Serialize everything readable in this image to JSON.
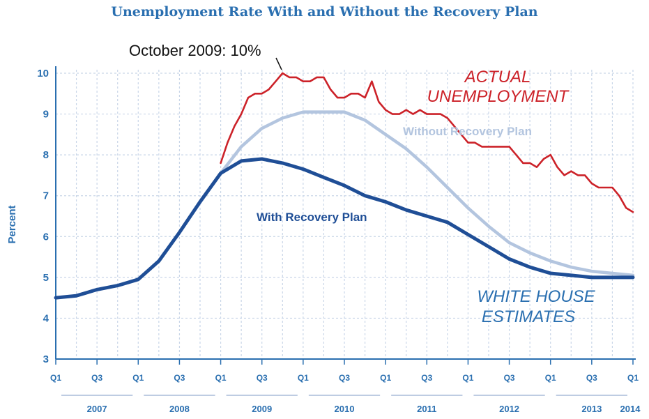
{
  "chart_data": {
    "type": "line",
    "title": "Unemployment Rate With and Without the Recovery Plan",
    "ylabel": "Percent",
    "xlabel": "",
    "ylim": [
      3,
      10
    ],
    "yticks": [
      3,
      4,
      5,
      6,
      7,
      8,
      9,
      10
    ],
    "xlim": [
      2007.0,
      2014.0
    ],
    "grid": true,
    "quarter_ticks": [
      {
        "x": 2007.0,
        "label": "Q1"
      },
      {
        "x": 2007.5,
        "label": "Q3"
      },
      {
        "x": 2008.0,
        "label": "Q1"
      },
      {
        "x": 2008.5,
        "label": "Q3"
      },
      {
        "x": 2009.0,
        "label": "Q1"
      },
      {
        "x": 2009.5,
        "label": "Q3"
      },
      {
        "x": 2010.0,
        "label": "Q1"
      },
      {
        "x": 2010.5,
        "label": "Q3"
      },
      {
        "x": 2011.0,
        "label": "Q1"
      },
      {
        "x": 2011.5,
        "label": "Q3"
      },
      {
        "x": 2012.0,
        "label": "Q1"
      },
      {
        "x": 2012.5,
        "label": "Q3"
      },
      {
        "x": 2013.0,
        "label": "Q1"
      },
      {
        "x": 2013.5,
        "label": "Q3"
      },
      {
        "x": 2014.0,
        "label": "Q1"
      }
    ],
    "year_labels": [
      "2007",
      "2008",
      "2009",
      "2010",
      "2011",
      "2012",
      "2013",
      "2014"
    ],
    "series": [
      {
        "name": "ACTUAL UNEMPLOYMENT",
        "color": "#cc2229",
        "x": [
          2009.0,
          2009.083,
          2009.167,
          2009.25,
          2009.333,
          2009.417,
          2009.5,
          2009.583,
          2009.667,
          2009.75,
          2009.833,
          2009.917,
          2010.0,
          2010.083,
          2010.167,
          2010.25,
          2010.333,
          2010.417,
          2010.5,
          2010.583,
          2010.667,
          2010.75,
          2010.833,
          2010.917,
          2011.0,
          2011.083,
          2011.167,
          2011.25,
          2011.333,
          2011.417,
          2011.5,
          2011.583,
          2011.667,
          2011.75,
          2011.833,
          2011.917,
          2012.0,
          2012.083,
          2012.167,
          2012.25,
          2012.333,
          2012.417,
          2012.5,
          2012.583,
          2012.667,
          2012.75,
          2012.833,
          2012.917,
          2013.0,
          2013.083,
          2013.167,
          2013.25,
          2013.333,
          2013.417,
          2013.5,
          2013.583,
          2013.667,
          2013.75,
          2013.833,
          2013.917,
          2014.0
        ],
        "values": [
          7.8,
          8.3,
          8.7,
          9.0,
          9.4,
          9.5,
          9.5,
          9.6,
          9.8,
          10.0,
          9.9,
          9.9,
          9.8,
          9.8,
          9.9,
          9.9,
          9.6,
          9.4,
          9.4,
          9.5,
          9.5,
          9.4,
          9.8,
          9.3,
          9.1,
          9.0,
          9.0,
          9.1,
          9.0,
          9.1,
          9.0,
          9.0,
          9.0,
          8.9,
          8.7,
          8.5,
          8.3,
          8.3,
          8.2,
          8.2,
          8.2,
          8.2,
          8.2,
          8.0,
          7.8,
          7.8,
          7.7,
          7.9,
          8.0,
          7.7,
          7.5,
          7.6,
          7.5,
          7.5,
          7.3,
          7.2,
          7.2,
          7.2,
          7.0,
          6.7,
          6.6
        ]
      },
      {
        "name": "Without Recovery Plan",
        "color": "#b3c5df",
        "x": [
          2007.0,
          2007.25,
          2007.5,
          2007.75,
          2008.0,
          2008.25,
          2008.5,
          2008.75,
          2009.0,
          2009.25,
          2009.5,
          2009.75,
          2010.0,
          2010.25,
          2010.5,
          2010.75,
          2011.0,
          2011.25,
          2011.5,
          2011.75,
          2012.0,
          2012.25,
          2012.5,
          2012.75,
          2013.0,
          2013.25,
          2013.5,
          2013.75,
          2014.0
        ],
        "values": [
          4.5,
          4.55,
          4.7,
          4.8,
          4.95,
          5.4,
          6.1,
          6.85,
          7.55,
          8.2,
          8.65,
          8.9,
          9.05,
          9.05,
          9.05,
          8.85,
          8.5,
          8.15,
          7.7,
          7.2,
          6.7,
          6.25,
          5.85,
          5.6,
          5.4,
          5.25,
          5.15,
          5.1,
          5.05
        ]
      },
      {
        "name": "With Recovery Plan",
        "color": "#1f4e96",
        "x": [
          2007.0,
          2007.25,
          2007.5,
          2007.75,
          2008.0,
          2008.25,
          2008.5,
          2008.75,
          2009.0,
          2009.25,
          2009.5,
          2009.75,
          2010.0,
          2010.25,
          2010.5,
          2010.75,
          2011.0,
          2011.25,
          2011.5,
          2011.75,
          2012.0,
          2012.25,
          2012.5,
          2012.75,
          2013.0,
          2013.25,
          2013.5,
          2013.75,
          2014.0
        ],
        "values": [
          4.5,
          4.55,
          4.7,
          4.8,
          4.95,
          5.4,
          6.1,
          6.85,
          7.55,
          7.85,
          7.9,
          7.8,
          7.65,
          7.45,
          7.25,
          7.0,
          6.85,
          6.65,
          6.5,
          6.35,
          6.05,
          5.75,
          5.45,
          5.25,
          5.1,
          5.05,
          5.0,
          5.0,
          5.0
        ]
      }
    ],
    "annotations": {
      "peak_callout": "October 2009: 10%",
      "actual_line1": "ACTUAL",
      "actual_line2": "UNEMPLOYMENT",
      "without_label": "Without Recovery Plan",
      "with_label": "With Recovery Plan",
      "source_line1": "WHITE HOUSE",
      "source_line2": "ESTIMATES"
    },
    "colors": {
      "axis": "#2a6fb0",
      "grid": "#c9d6e8",
      "text_blue": "#2a6fb0",
      "red": "#cc2229"
    }
  }
}
